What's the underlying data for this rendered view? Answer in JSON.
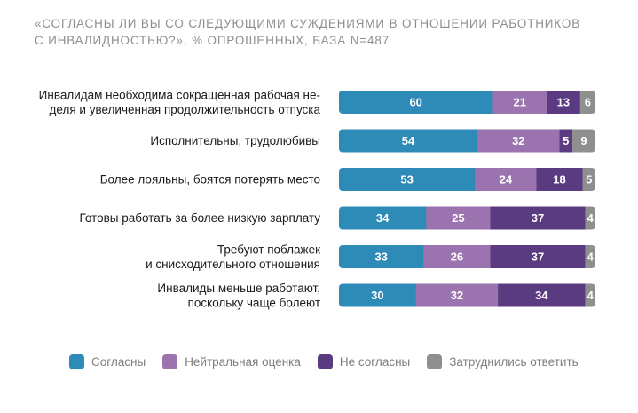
{
  "title_lines": [
    "«СОГЛАСНЫ ЛИ ВЫ СО СЛЕДУЮЩИМИ СУЖДЕНИЯМИ В ОТНОШЕНИИ РАБОТНИКОВ",
    "С ИНВАЛИДНОСТЬЮ?», % ОПРОШЕННЫХ, БАЗА N=487"
  ],
  "chart_data": {
    "type": "bar",
    "orientation": "horizontal",
    "stacked": true,
    "categories": [
      [
        "Инвалидам необходима сокращенная рабочая не-",
        "деля и увеличенная продолжительность отпуска"
      ],
      [
        "Исполнительны, трудолюбивы"
      ],
      [
        "Более лояльны, боятся потерять место"
      ],
      [
        "Готовы работать за более низкую зарплату"
      ],
      [
        "Требуют поблажек",
        "и снисходительного отношения"
      ],
      [
        "Инвалиды меньше работают,",
        "поскольку чаще болеют"
      ]
    ],
    "series": [
      {
        "name": "Согласны",
        "color": "#2e8bb8",
        "values": [
          60,
          54,
          53,
          34,
          33,
          30
        ]
      },
      {
        "name": "Нейтральная оценка",
        "color": "#9b73ae",
        "values": [
          21,
          32,
          24,
          25,
          26,
          32
        ]
      },
      {
        "name": "Не согласны",
        "color": "#5a3a80",
        "values": [
          13,
          5,
          18,
          37,
          37,
          34
        ]
      },
      {
        "name": "Затруднились ответить",
        "color": "#8f8f8f",
        "values": [
          6,
          9,
          5,
          4,
          4,
          4
        ]
      }
    ],
    "legend_position": "bottom",
    "grid": false
  }
}
